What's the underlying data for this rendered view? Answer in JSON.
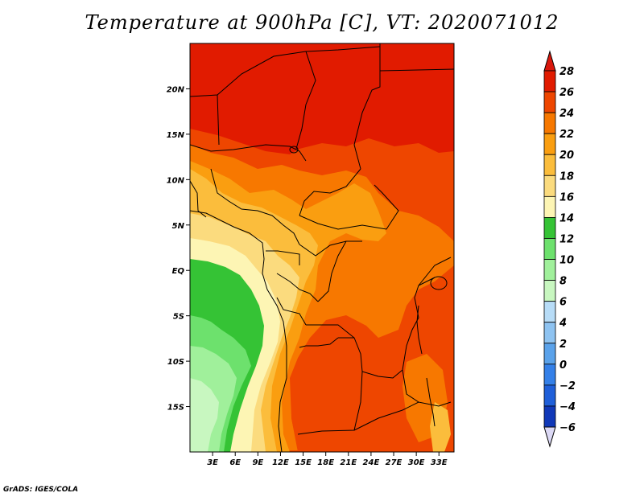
{
  "title": "Temperature at 900hPa [C], VT: 2020071012",
  "footer": "GrADS: IGES/COLA",
  "map": {
    "lon_range": [
      0,
      35
    ],
    "lat_range": [
      -20,
      25
    ],
    "lat_ticks": [
      {
        "value": 20,
        "label": "20N"
      },
      {
        "value": 15,
        "label": "15N"
      },
      {
        "value": 10,
        "label": "10N"
      },
      {
        "value": 5,
        "label": "5N"
      },
      {
        "value": 0,
        "label": "EQ"
      },
      {
        "value": -5,
        "label": "5S"
      },
      {
        "value": -10,
        "label": "10S"
      },
      {
        "value": -15,
        "label": "15S"
      }
    ],
    "lon_ticks": [
      {
        "value": 3,
        "label": "3E"
      },
      {
        "value": 6,
        "label": "6E"
      },
      {
        "value": 9,
        "label": "9E"
      },
      {
        "value": 12,
        "label": "12E"
      },
      {
        "value": 15,
        "label": "15E"
      },
      {
        "value": 18,
        "label": "18E"
      },
      {
        "value": 21,
        "label": "21E"
      },
      {
        "value": 24,
        "label": "24E"
      },
      {
        "value": 27,
        "label": "27E"
      },
      {
        "value": 30,
        "label": "30E"
      },
      {
        "value": 33,
        "label": "33E"
      }
    ]
  },
  "colorbar": {
    "levels": [
      {
        "value": 28,
        "label": "28",
        "color": "#e11b00"
      },
      {
        "value": 26,
        "label": "26",
        "color": "#ee4600"
      },
      {
        "value": 24,
        "label": "24",
        "color": "#f77800"
      },
      {
        "value": 22,
        "label": "22",
        "color": "#fa9e10"
      },
      {
        "value": 20,
        "label": "20",
        "color": "#fbbd3c"
      },
      {
        "value": 18,
        "label": "18",
        "color": "#fbdb7e"
      },
      {
        "value": 16,
        "label": "16",
        "color": "#fdf5b4"
      },
      {
        "value": 14,
        "label": "14",
        "color": "#35c335"
      },
      {
        "value": 12,
        "label": "12",
        "color": "#6de16d"
      },
      {
        "value": 10,
        "label": "10",
        "color": "#a0f09b"
      },
      {
        "value": 8,
        "label": "8",
        "color": "#c8f7c0"
      },
      {
        "value": 6,
        "label": "6",
        "color": "#b7dcf7"
      },
      {
        "value": 4,
        "label": "4",
        "color": "#8ec3f1"
      },
      {
        "value": 2,
        "label": "2",
        "color": "#5aa2ea"
      },
      {
        "value": 0,
        "label": "0",
        "color": "#3480e8"
      },
      {
        "value": -2,
        "label": "−2",
        "color": "#1f5fd9"
      },
      {
        "value": -4,
        "label": "−4",
        "color": "#1038b8"
      },
      {
        "value": -6,
        "label": "−6",
        "color": "#0a1a88"
      }
    ],
    "top_triangle_color": "#d9170c",
    "bottom_triangle_color": "#dcd9f5"
  }
}
